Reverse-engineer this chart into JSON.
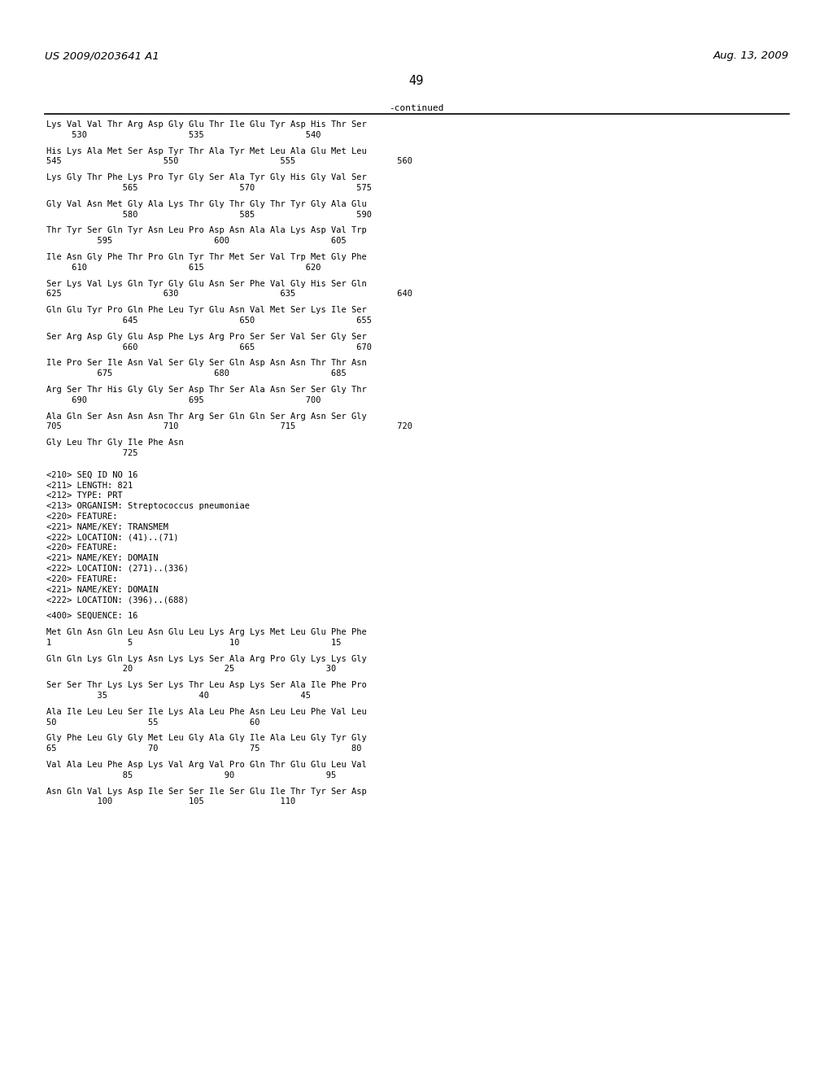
{
  "header_left": "US 2009/0203641 A1",
  "header_right": "Aug. 13, 2009",
  "page_number": "49",
  "continued_label": "-continued",
  "background_color": "#ffffff",
  "text_color": "#000000",
  "font_size": 7.5,
  "header_font_size": 9.5,
  "lines": [
    "Lys Val Val Thr Arg Asp Gly Glu Thr Ile Glu Tyr Asp His Thr Ser",
    "     530                    535                    540",
    "",
    "His Lys Ala Met Ser Asp Tyr Thr Ala Tyr Met Leu Ala Glu Met Leu",
    "545                    550                    555                    560",
    "",
    "Lys Gly Thr Phe Lys Pro Tyr Gly Ser Ala Tyr Gly His Gly Val Ser",
    "               565                    570                    575",
    "",
    "Gly Val Asn Met Gly Ala Lys Thr Gly Thr Gly Thr Tyr Gly Ala Glu",
    "               580                    585                    590",
    "",
    "Thr Tyr Ser Gln Tyr Asn Leu Pro Asp Asn Ala Ala Lys Asp Val Trp",
    "          595                    600                    605",
    "",
    "Ile Asn Gly Phe Thr Pro Gln Tyr Thr Met Ser Val Trp Met Gly Phe",
    "     610                    615                    620",
    "",
    "Ser Lys Val Lys Gln Tyr Gly Glu Asn Ser Phe Val Gly His Ser Gln",
    "625                    630                    635                    640",
    "",
    "Gln Glu Tyr Pro Gln Phe Leu Tyr Glu Asn Val Met Ser Lys Ile Ser",
    "               645                    650                    655",
    "",
    "Ser Arg Asp Gly Glu Asp Phe Lys Arg Pro Ser Ser Val Ser Gly Ser",
    "               660                    665                    670",
    "",
    "Ile Pro Ser Ile Asn Val Ser Gly Ser Gln Asp Asn Asn Thr Thr Asn",
    "          675                    680                    685",
    "",
    "Arg Ser Thr His Gly Gly Ser Asp Thr Ser Ala Asn Ser Ser Gly Thr",
    "     690                    695                    700",
    "",
    "Ala Gln Ser Asn Asn Asn Thr Arg Ser Gln Gln Ser Arg Asn Ser Gly",
    "705                    710                    715                    720",
    "",
    "Gly Leu Thr Gly Ile Phe Asn",
    "               725",
    "",
    "",
    "<210> SEQ ID NO 16",
    "<211> LENGTH: 821",
    "<212> TYPE: PRT",
    "<213> ORGANISM: Streptococcus pneumoniae",
    "<220> FEATURE:",
    "<221> NAME/KEY: TRANSMEM",
    "<222> LOCATION: (41)..(71)",
    "<220> FEATURE:",
    "<221> NAME/KEY: DOMAIN",
    "<222> LOCATION: (271)..(336)",
    "<220> FEATURE:",
    "<221> NAME/KEY: DOMAIN",
    "<222> LOCATION: (396)..(688)",
    "",
    "<400> SEQUENCE: 16",
    "",
    "Met Gln Asn Gln Leu Asn Glu Leu Lys Arg Lys Met Leu Glu Phe Phe",
    "1               5                   10                  15",
    "",
    "Gln Gln Lys Gln Lys Asn Lys Lys Ser Ala Arg Pro Gly Lys Lys Gly",
    "               20                  25                  30",
    "",
    "Ser Ser Thr Lys Lys Ser Lys Thr Leu Asp Lys Ser Ala Ile Phe Pro",
    "          35                  40                  45",
    "",
    "Ala Ile Leu Leu Ser Ile Lys Ala Leu Phe Asn Leu Leu Phe Val Leu",
    "50                  55                  60",
    "",
    "Gly Phe Leu Gly Gly Met Leu Gly Ala Gly Ile Ala Leu Gly Tyr Gly",
    "65                  70                  75                  80",
    "",
    "Val Ala Leu Phe Asp Lys Val Arg Val Pro Gln Thr Glu Glu Leu Val",
    "               85                  90                  95",
    "",
    "Asn Gln Val Lys Asp Ile Ser Ser Ile Ser Glu Ile Thr Tyr Ser Asp",
    "          100               105               110"
  ]
}
